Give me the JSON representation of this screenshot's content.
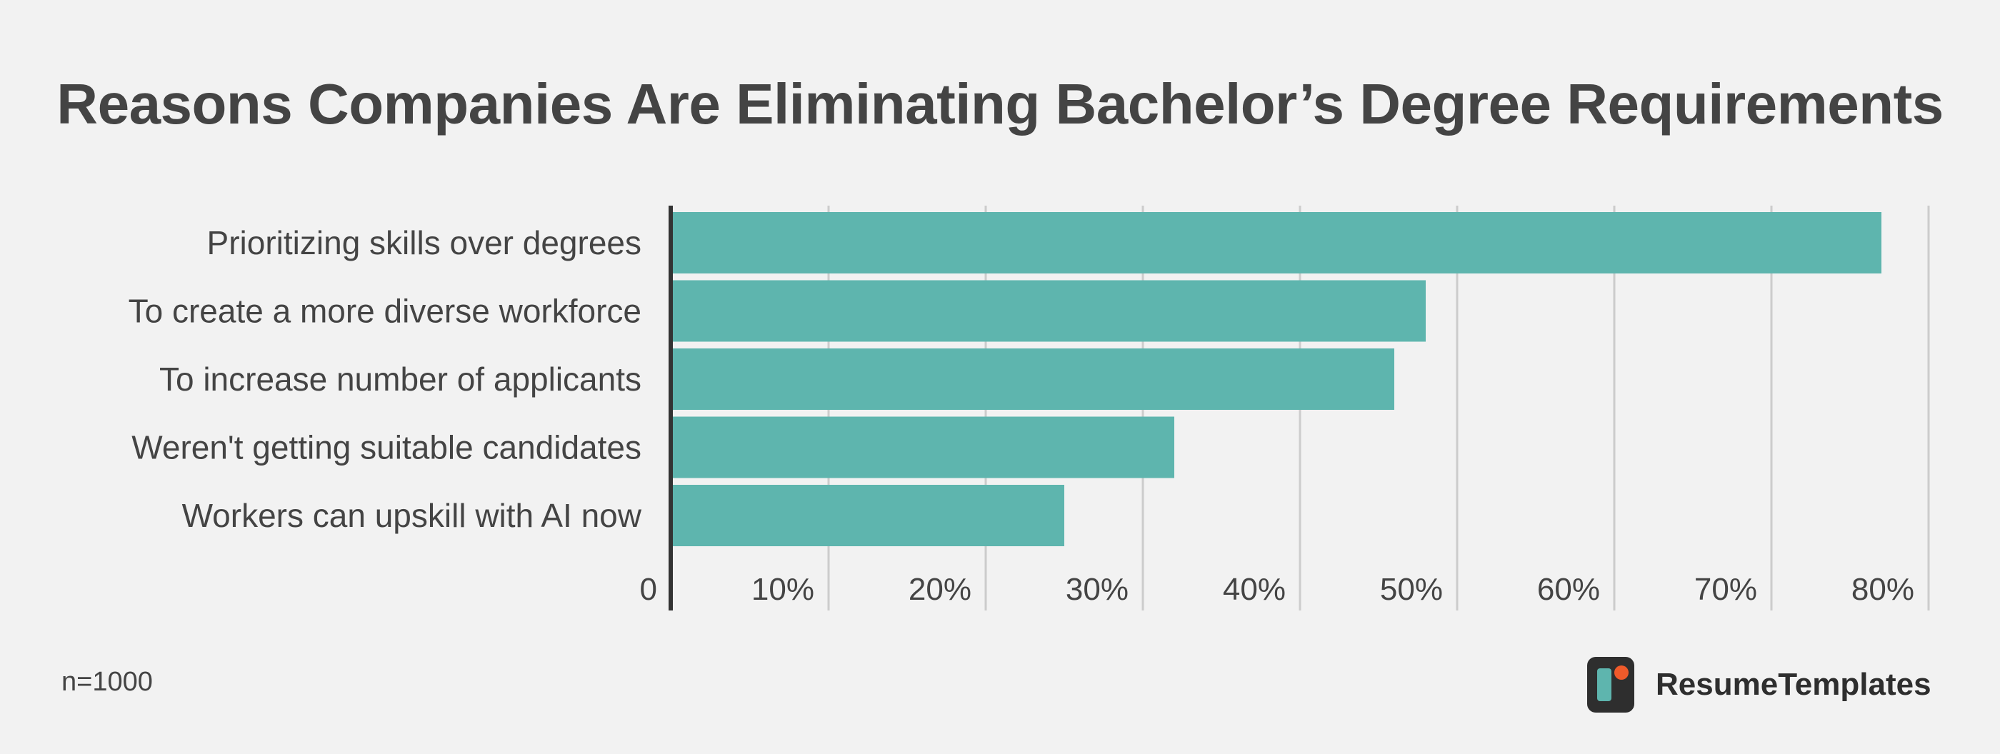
{
  "chart_data": {
    "type": "bar",
    "orientation": "horizontal",
    "title": "Reasons Companies Are Eliminating Bachelor’s Degree Requirements",
    "categories": [
      "Prioritizing skills over degrees",
      "To create a more diverse workforce",
      "To increase number of applicants",
      "Weren't getting suitable candidates",
      "Workers can upskill with AI now"
    ],
    "values": [
      77,
      48,
      46,
      32,
      25
    ],
    "unit": "%",
    "xlim": [
      0,
      80
    ],
    "x_ticks": [
      {
        "value": 0,
        "label": "0"
      },
      {
        "value": 10,
        "label": "10%"
      },
      {
        "value": 20,
        "label": "20%"
      },
      {
        "value": 30,
        "label": "30%"
      },
      {
        "value": 40,
        "label": "40%"
      },
      {
        "value": 50,
        "label": "50%"
      },
      {
        "value": 60,
        "label": "60%"
      },
      {
        "value": 70,
        "label": "70%"
      },
      {
        "value": 80,
        "label": "80%"
      }
    ],
    "grid": true,
    "bar_color": "#5eb5ae",
    "grid_color": "#cccccc",
    "axis_color": "#333333",
    "text_color": "#444444"
  },
  "footnote": "n=1000",
  "brand": {
    "name": "ResumeTemplates",
    "icon": "resumetemplates-logo-icon",
    "logo_bg": "#2e2e2e",
    "logo_bar": "#5eb5ae",
    "logo_dot": "#ef5a2a"
  }
}
